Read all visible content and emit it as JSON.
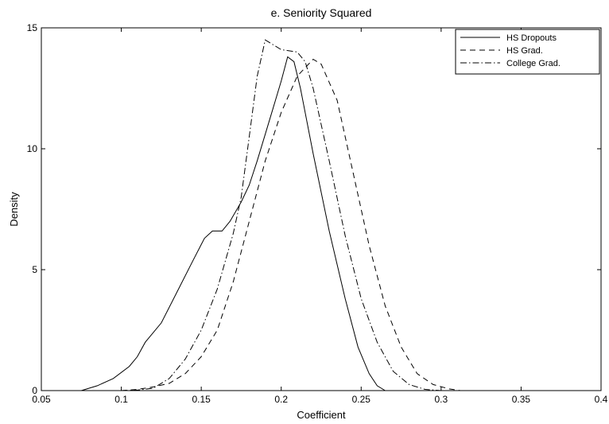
{
  "chart_data": {
    "type": "line",
    "title": "e. Seniority Squared",
    "xlabel": "Coefficient",
    "ylabel": "Density",
    "xlim": [
      0.05,
      0.4
    ],
    "ylim": [
      0,
      15
    ],
    "xticks": [
      0.05,
      0.1,
      0.15,
      0.2,
      0.25,
      0.3,
      0.35,
      0.4
    ],
    "xtick_labels": [
      "0.05",
      "0.1",
      "0.15",
      "0.2",
      "0.25",
      "0.3",
      "0.35",
      "0.4"
    ],
    "yticks": [
      0,
      5,
      10,
      15
    ],
    "ytick_labels": [
      "0",
      "5",
      "10",
      "15"
    ],
    "grid": false,
    "legend_position": "top-right",
    "series": [
      {
        "name": "HS Dropouts",
        "style": "solid",
        "color": "#000000",
        "points": [
          [
            0.075,
            0
          ],
          [
            0.085,
            0.2
          ],
          [
            0.095,
            0.5
          ],
          [
            0.105,
            1.0
          ],
          [
            0.11,
            1.4
          ],
          [
            0.115,
            2.0
          ],
          [
            0.125,
            2.8
          ],
          [
            0.135,
            4.1
          ],
          [
            0.145,
            5.4
          ],
          [
            0.152,
            6.3
          ],
          [
            0.157,
            6.6
          ],
          [
            0.163,
            6.6
          ],
          [
            0.168,
            7.0
          ],
          [
            0.175,
            7.8
          ],
          [
            0.18,
            8.5
          ],
          [
            0.185,
            9.5
          ],
          [
            0.19,
            10.6
          ],
          [
            0.195,
            11.7
          ],
          [
            0.2,
            12.8
          ],
          [
            0.204,
            13.8
          ],
          [
            0.208,
            13.6
          ],
          [
            0.212,
            12.5
          ],
          [
            0.22,
            9.8
          ],
          [
            0.23,
            6.6
          ],
          [
            0.24,
            3.8
          ],
          [
            0.248,
            1.8
          ],
          [
            0.255,
            0.7
          ],
          [
            0.26,
            0.2
          ],
          [
            0.265,
            0
          ]
        ]
      },
      {
        "name": "HS Grad.",
        "style": "dashed",
        "color": "#000000",
        "points": [
          [
            0.1,
            0
          ],
          [
            0.11,
            0.05
          ],
          [
            0.12,
            0.15
          ],
          [
            0.13,
            0.3
          ],
          [
            0.14,
            0.7
          ],
          [
            0.15,
            1.4
          ],
          [
            0.16,
            2.5
          ],
          [
            0.17,
            4.5
          ],
          [
            0.18,
            7.0
          ],
          [
            0.19,
            9.5
          ],
          [
            0.2,
            11.5
          ],
          [
            0.21,
            13.0
          ],
          [
            0.22,
            13.7
          ],
          [
            0.225,
            13.5
          ],
          [
            0.235,
            12.0
          ],
          [
            0.245,
            9.0
          ],
          [
            0.255,
            6.0
          ],
          [
            0.265,
            3.5
          ],
          [
            0.275,
            1.8
          ],
          [
            0.285,
            0.7
          ],
          [
            0.295,
            0.25
          ],
          [
            0.305,
            0.07
          ],
          [
            0.312,
            0
          ]
        ]
      },
      {
        "name": "College Grad.",
        "style": "dashdot",
        "color": "#000000",
        "points": [
          [
            0.1,
            0
          ],
          [
            0.11,
            0.02
          ],
          [
            0.12,
            0.1
          ],
          [
            0.13,
            0.5
          ],
          [
            0.14,
            1.3
          ],
          [
            0.15,
            2.5
          ],
          [
            0.16,
            4.2
          ],
          [
            0.17,
            6.5
          ],
          [
            0.175,
            8.0
          ],
          [
            0.18,
            10.5
          ],
          [
            0.185,
            13.0
          ],
          [
            0.19,
            14.5
          ],
          [
            0.195,
            14.3
          ],
          [
            0.2,
            14.1
          ],
          [
            0.21,
            14.0
          ],
          [
            0.215,
            13.6
          ],
          [
            0.22,
            12.5
          ],
          [
            0.23,
            9.5
          ],
          [
            0.24,
            6.4
          ],
          [
            0.25,
            3.8
          ],
          [
            0.26,
            2.0
          ],
          [
            0.27,
            0.8
          ],
          [
            0.28,
            0.25
          ],
          [
            0.29,
            0.05
          ],
          [
            0.3,
            0
          ]
        ]
      }
    ]
  }
}
